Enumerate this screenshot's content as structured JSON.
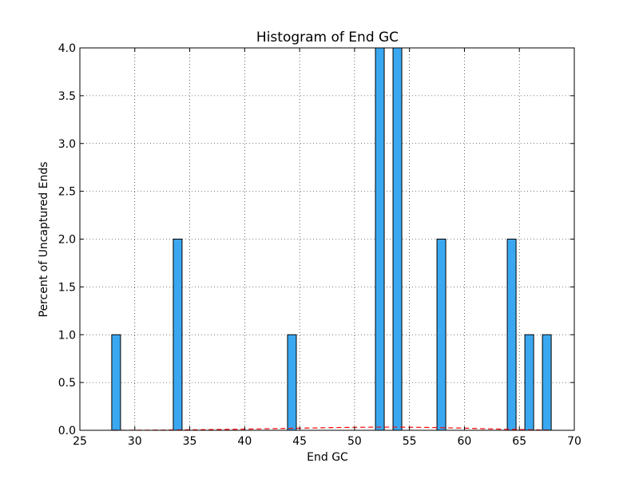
{
  "chart_data": {
    "type": "bar",
    "title": "Histogram of End GC",
    "xlabel": "End GC",
    "ylabel": "Percent of Uncaptured Ends",
    "xlim": [
      25,
      70
    ],
    "ylim": [
      0,
      4.0
    ],
    "xticks": [
      "25",
      "30",
      "35",
      "40",
      "45",
      "50",
      "55",
      "60",
      "65",
      "70"
    ],
    "yticks": [
      "0.0",
      "0.5",
      "1.0",
      "1.5",
      "2.0",
      "2.5",
      "3.0",
      "3.5",
      "4.0"
    ],
    "grid": true,
    "bars": [
      {
        "x0": 27.9,
        "x1": 28.7,
        "value": 1
      },
      {
        "x0": 33.5,
        "x1": 34.3,
        "value": 2
      },
      {
        "x0": 43.9,
        "x1": 44.7,
        "value": 1
      },
      {
        "x0": 51.9,
        "x1": 52.7,
        "value": 4
      },
      {
        "x0": 53.5,
        "x1": 54.3,
        "value": 4
      },
      {
        "x0": 57.5,
        "x1": 58.3,
        "value": 2
      },
      {
        "x0": 63.9,
        "x1": 64.7,
        "value": 2
      },
      {
        "x0": 65.5,
        "x1": 66.3,
        "value": 1
      },
      {
        "x0": 67.1,
        "x1": 67.9,
        "value": 1
      }
    ],
    "bar_color": "#3aa8f0",
    "fit_curve": {
      "color": "#ff0000",
      "style": "dashed",
      "x": [
        28,
        30,
        32,
        34,
        36,
        38,
        40,
        42,
        44,
        46,
        48,
        50,
        52,
        54,
        56,
        58,
        60,
        62,
        64,
        66,
        68
      ],
      "y": [
        0.0,
        0.001,
        0.002,
        0.004,
        0.006,
        0.009,
        0.012,
        0.016,
        0.02,
        0.024,
        0.028,
        0.031,
        0.033,
        0.033,
        0.031,
        0.027,
        0.022,
        0.016,
        0.01,
        0.005,
        0.002
      ]
    }
  }
}
